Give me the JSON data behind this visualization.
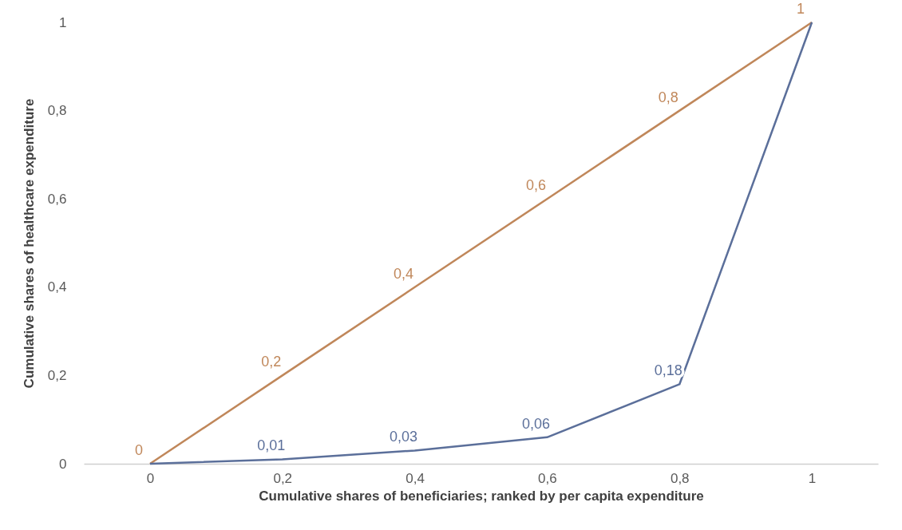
{
  "chart_data": {
    "type": "line",
    "xlabel": "Cumulative shares of beneficiaries; ranked by per capita expenditure",
    "ylabel": "Cumulative shares of healthcare expenditure",
    "categories": [
      "0",
      "0,2",
      "0,4",
      "0,6",
      "0,8",
      "1"
    ],
    "series": [
      {
        "color": "#c0875a",
        "values": [
          0,
          0.2,
          0.4,
          0.6,
          0.8,
          1
        ],
        "value_labels": [
          "0",
          "0,2",
          "0,4",
          "0,6",
          "0,8",
          "1"
        ]
      },
      {
        "color": "#5b6f9a",
        "values": [
          0,
          0.01,
          0.03,
          0.06,
          0.18,
          1
        ],
        "value_labels": [
          null,
          "0,01",
          "0,03",
          "0,06",
          "0,18",
          null
        ]
      }
    ],
    "ylim": [
      0,
      1
    ],
    "yticks": [
      0,
      {
        "value": 0.2,
        "label": "0,2"
      },
      {
        "value": 0.4,
        "label": "0,4"
      },
      {
        "value": 0.6,
        "label": "0,6"
      },
      {
        "value": 0.8,
        "label": "0,8"
      },
      1
    ],
    "grid": false,
    "legend": false,
    "marker": "none",
    "line_style": "solid"
  }
}
